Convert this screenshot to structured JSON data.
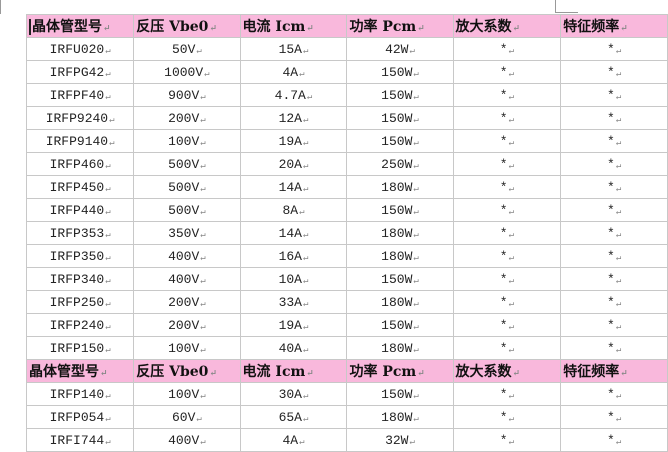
{
  "columns": [
    "晶体管型号",
    "反压 Vbe0",
    "电流 Icm",
    "功率 Pcm",
    "放大系数",
    "特征频率"
  ],
  "paragraph_mark": "↵",
  "header_color": "#f9b8dc",
  "rows_before": [
    [
      "IRFU020",
      "50V",
      "15A",
      "42W",
      "*",
      "*"
    ],
    [
      "IRFPG42",
      "1000V",
      "4A",
      "150W",
      "*",
      "*"
    ],
    [
      "IRFPF40",
      "900V",
      "4.7A",
      "150W",
      "*",
      "*"
    ],
    [
      "IRFP9240",
      "200V",
      "12A",
      "150W",
      "*",
      "*"
    ],
    [
      "IRFP9140",
      "100V",
      "19A",
      "150W",
      "*",
      "*"
    ],
    [
      "IRFP460",
      "500V",
      "20A",
      "250W",
      "*",
      "*"
    ],
    [
      "IRFP450",
      "500V",
      "14A",
      "180W",
      "*",
      "*"
    ],
    [
      "IRFP440",
      "500V",
      "8A",
      "150W",
      "*",
      "*"
    ],
    [
      "IRFP353",
      "350V",
      "14A",
      "180W",
      "*",
      "*"
    ],
    [
      "IRFP350",
      "400V",
      "16A",
      "180W",
      "*",
      "*"
    ],
    [
      "IRFP340",
      "400V",
      "10A",
      "150W",
      "*",
      "*"
    ],
    [
      "IRFP250",
      "200V",
      "33A",
      "180W",
      "*",
      "*"
    ],
    [
      "IRFP240",
      "200V",
      "19A",
      "150W",
      "*",
      "*"
    ],
    [
      "IRFP150",
      "100V",
      "40A",
      "180W",
      "*",
      "*"
    ]
  ],
  "rows_after": [
    [
      "IRFP140",
      "100V",
      "30A",
      "150W",
      "*",
      "*"
    ],
    [
      "IRFP054",
      "60V",
      "65A",
      "180W",
      "*",
      "*"
    ],
    [
      "IRFI744",
      "400V",
      "4A",
      "32W",
      "*",
      "*"
    ]
  ]
}
